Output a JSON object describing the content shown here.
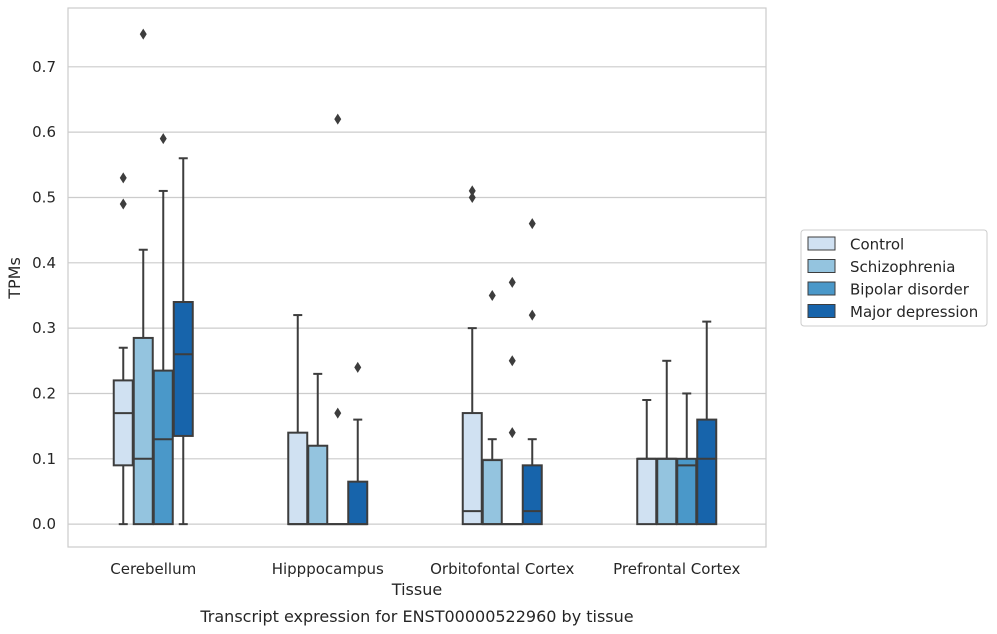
{
  "chart_data": {
    "type": "box",
    "xlabel": "Tissue",
    "ylabel": "TPMs",
    "caption": "Transcript expression for ENST00000522960 by tissue",
    "ylim": [
      -0.035,
      0.79
    ],
    "yticks": [
      0.0,
      0.1,
      0.2,
      0.3,
      0.4,
      0.5,
      0.6,
      0.7
    ],
    "ytick_labels": [
      "0.0",
      "0.1",
      "0.2",
      "0.3",
      "0.4",
      "0.5",
      "0.6",
      "0.7"
    ],
    "grid": "horizontal",
    "legend_position": "right",
    "categories": [
      "Cerebellum",
      "Hipppocampus",
      "Orbitofontal Cortex",
      "Prefrontal Cortex"
    ],
    "series": [
      {
        "name": "Control",
        "color": "#d0e1f2",
        "boxes": [
          {
            "whisker_low": 0.0,
            "q1": 0.09,
            "median": 0.17,
            "q3": 0.22,
            "whisker_high": 0.27,
            "outliers": [
              0.49,
              0.53
            ]
          },
          {
            "whisker_low": 0.0,
            "q1": 0.0,
            "median": 0.0,
            "q3": 0.14,
            "whisker_high": 0.32,
            "outliers": []
          },
          {
            "whisker_low": 0.0,
            "q1": 0.0,
            "median": 0.02,
            "q3": 0.17,
            "whisker_high": 0.3,
            "outliers": [
              0.5,
              0.51
            ]
          },
          {
            "whisker_low": 0.0,
            "q1": 0.0,
            "median": 0.1,
            "q3": 0.1,
            "whisker_high": 0.19,
            "outliers": []
          }
        ]
      },
      {
        "name": "Schizophrenia",
        "color": "#94c4df",
        "boxes": [
          {
            "whisker_low": 0.0,
            "q1": 0.0,
            "median": 0.1,
            "q3": 0.285,
            "whisker_high": 0.42,
            "outliers": [
              0.75
            ]
          },
          {
            "whisker_low": 0.0,
            "q1": 0.0,
            "median": 0.0,
            "q3": 0.12,
            "whisker_high": 0.23,
            "outliers": []
          },
          {
            "whisker_low": 0.0,
            "q1": 0.0,
            "median": 0.0,
            "q3": 0.098,
            "whisker_high": 0.13,
            "outliers": [
              0.35
            ]
          },
          {
            "whisker_low": 0.0,
            "q1": 0.0,
            "median": 0.1,
            "q3": 0.1,
            "whisker_high": 0.25,
            "outliers": []
          }
        ]
      },
      {
        "name": "Bipolar disorder",
        "color": "#4a98c9",
        "boxes": [
          {
            "whisker_low": 0.0,
            "q1": 0.0,
            "median": 0.13,
            "q3": 0.235,
            "whisker_high": 0.51,
            "outliers": [
              0.59
            ]
          },
          {
            "whisker_low": 0.0,
            "q1": 0.0,
            "median": 0.0,
            "q3": 0.0,
            "whisker_high": 0.0,
            "outliers": [
              0.17,
              0.62
            ]
          },
          {
            "whisker_low": 0.0,
            "q1": 0.0,
            "median": 0.0,
            "q3": 0.0,
            "whisker_high": 0.0,
            "outliers": [
              0.14,
              0.25,
              0.37
            ]
          },
          {
            "whisker_low": 0.0,
            "q1": 0.0,
            "median": 0.09,
            "q3": 0.1,
            "whisker_high": 0.2,
            "outliers": []
          }
        ]
      },
      {
        "name": "Major depression",
        "color": "#1764ab",
        "boxes": [
          {
            "whisker_low": 0.0,
            "q1": 0.135,
            "median": 0.26,
            "q3": 0.34,
            "whisker_high": 0.56,
            "outliers": []
          },
          {
            "whisker_low": 0.0,
            "q1": 0.0,
            "median": 0.0,
            "q3": 0.065,
            "whisker_high": 0.16,
            "outliers": [
              0.24
            ]
          },
          {
            "whisker_low": 0.0,
            "q1": 0.0,
            "median": 0.02,
            "q3": 0.09,
            "whisker_high": 0.13,
            "outliers": [
              0.32,
              0.46
            ]
          },
          {
            "whisker_low": 0.0,
            "q1": 0.0,
            "median": 0.1,
            "q3": 0.16,
            "whisker_high": 0.31,
            "outliers": []
          }
        ]
      }
    ]
  },
  "colors": {
    "grid": "#cccccc",
    "frame": "#cccccc",
    "box_edge": "#3d3d3d",
    "text": "#262626"
  }
}
